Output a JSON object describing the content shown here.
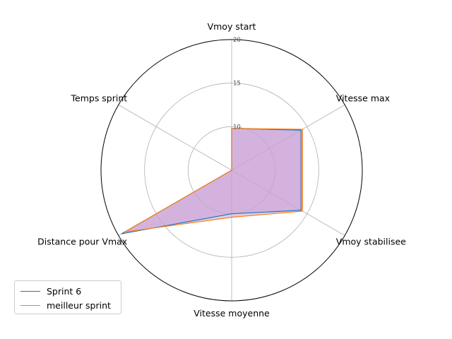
{
  "chart_data": {
    "type": "radar",
    "axes": [
      "Vmoy start",
      "Vitesse max",
      "Vmoy stabilisee",
      "Vitesse moyenne",
      "Distance pour Vmax",
      "Temps sprint"
    ],
    "r_ticks": [
      10,
      15,
      20
    ],
    "rlim": [
      5,
      20
    ],
    "grid": true,
    "legend_position": "lower-left",
    "series": [
      {
        "name": "Sprint 6",
        "values": [
          9.8,
          14.2,
          14.2,
          10.0,
          19.6,
          5.0
        ],
        "color": "#1f77b4"
      },
      {
        "name": "meilleur sprint",
        "values": [
          9.8,
          14.4,
          14.4,
          10.4,
          19.2,
          5.0
        ],
        "color": "#ff7f0e"
      }
    ],
    "fill_color": "#c9a0d6"
  }
}
